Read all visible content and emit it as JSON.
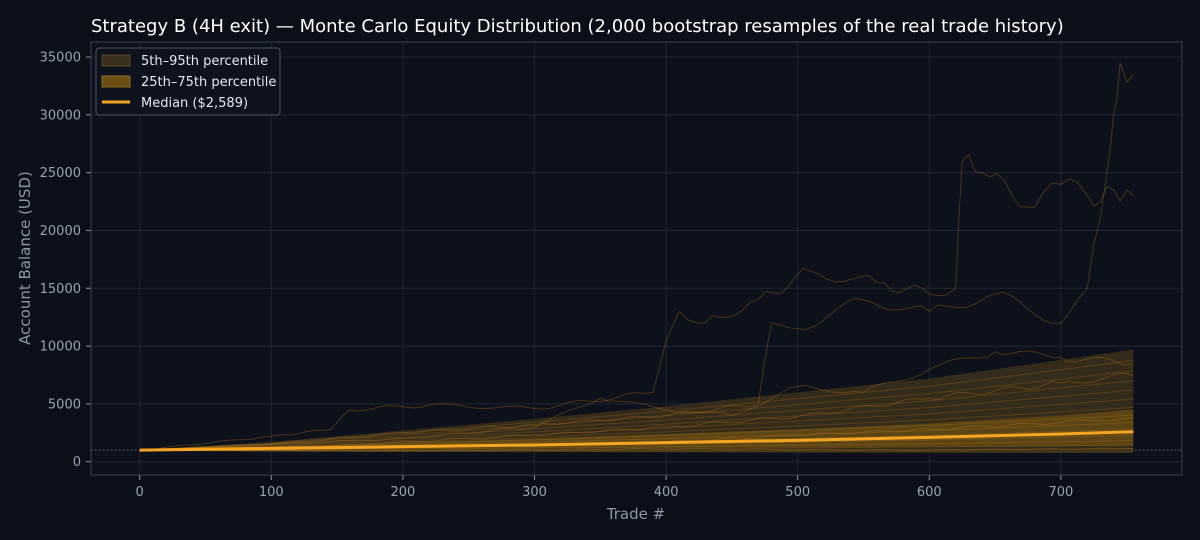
{
  "chart_data": {
    "type": "area",
    "title": "Strategy B (4H exit) — Monte Carlo Equity Distribution (2,000 bootstrap resamples of the real trade history)",
    "xlabel": "Trade #",
    "ylabel": "Account Balance (USD)",
    "xlim": [
      -37,
      792
    ],
    "ylim": [
      -1150,
      36300
    ],
    "xticks": [
      0,
      100,
      200,
      300,
      400,
      500,
      600,
      700
    ],
    "yticks": [
      0,
      5000,
      10000,
      15000,
      20000,
      25000,
      30000,
      35000
    ],
    "grid": true,
    "legend_position": "top-left",
    "baseline": 1000,
    "colors": {
      "background": "#0b0f18",
      "grid": "#1f2633",
      "band_outer": "#3a2f1c",
      "band_inner": "#6b4e14",
      "median": "#f5a524",
      "paths": "#c8881a",
      "baseline": "#6a7380"
    },
    "series": [
      {
        "name": "5th–95th percentile",
        "x": [
          0,
          100,
          200,
          300,
          400,
          500,
          600,
          700,
          755
        ],
        "lower": [
          1000,
          900,
          870,
          850,
          820,
          800,
          780,
          760,
          750
        ],
        "upper": [
          1000,
          1700,
          2700,
          3700,
          4800,
          6000,
          7200,
          8800,
          9700
        ]
      },
      {
        "name": "25th–75th percentile",
        "x": [
          0,
          100,
          200,
          300,
          400,
          500,
          600,
          700,
          755
        ],
        "lower": [
          1000,
          1040,
          1080,
          1130,
          1180,
          1230,
          1290,
          1350,
          1400
        ],
        "upper": [
          1000,
          1300,
          1650,
          2000,
          2400,
          2800,
          3300,
          4000,
          4500
        ]
      },
      {
        "name": "Median ($2,589)",
        "x": [
          0,
          100,
          200,
          300,
          400,
          500,
          600,
          700,
          755
        ],
        "values": [
          1000,
          1150,
          1300,
          1450,
          1650,
          1850,
          2100,
          2400,
          2589
        ]
      }
    ],
    "sample_paths": [
      {
        "x": [
          0,
          100,
          145,
          160,
          220,
          300,
          390,
          400,
          410,
          430,
          440,
          470,
          510,
          560,
          600,
          620,
          625,
          640,
          680,
          700,
          720,
          730,
          740,
          755
        ],
        "values": [
          1000,
          2200,
          2800,
          4500,
          4900,
          4600,
          6000,
          10500,
          13000,
          12000,
          12500,
          14000,
          16500,
          15500,
          14500,
          15000,
          26000,
          25000,
          22000,
          24000,
          23000,
          22500,
          23500,
          23000
        ]
      },
      {
        "x": [
          0,
          100,
          200,
          300,
          400,
          470,
          480,
          500,
          550,
          600,
          650,
          700,
          720,
          735,
          740,
          745,
          755
        ],
        "values": [
          1000,
          1500,
          2500,
          3200,
          4000,
          5000,
          12000,
          11500,
          14000,
          13000,
          14500,
          12000,
          15000,
          25000,
          30000,
          34500,
          33500
        ]
      },
      {
        "x": [
          0,
          200,
          300,
          350,
          400,
          450,
          500,
          550,
          600,
          650,
          700,
          755
        ],
        "values": [
          1000,
          2000,
          3000,
          5500,
          4500,
          4000,
          6500,
          6000,
          8000,
          9500,
          9000,
          8500
        ]
      },
      {
        "x": [
          0,
          150,
          300,
          400,
          500,
          600,
          700,
          755
        ],
        "values": [
          1000,
          1400,
          2300,
          3000,
          3900,
          5500,
          6800,
          7500
        ]
      },
      {
        "x": [
          0,
          200,
          400,
          500,
          600,
          700,
          755
        ],
        "values": [
          1000,
          1300,
          1700,
          2300,
          2800,
          3400,
          3800
        ]
      },
      {
        "x": [
          0,
          200,
          400,
          600,
          755
        ],
        "values": [
          1000,
          950,
          1100,
          1000,
          1150
        ]
      }
    ]
  }
}
